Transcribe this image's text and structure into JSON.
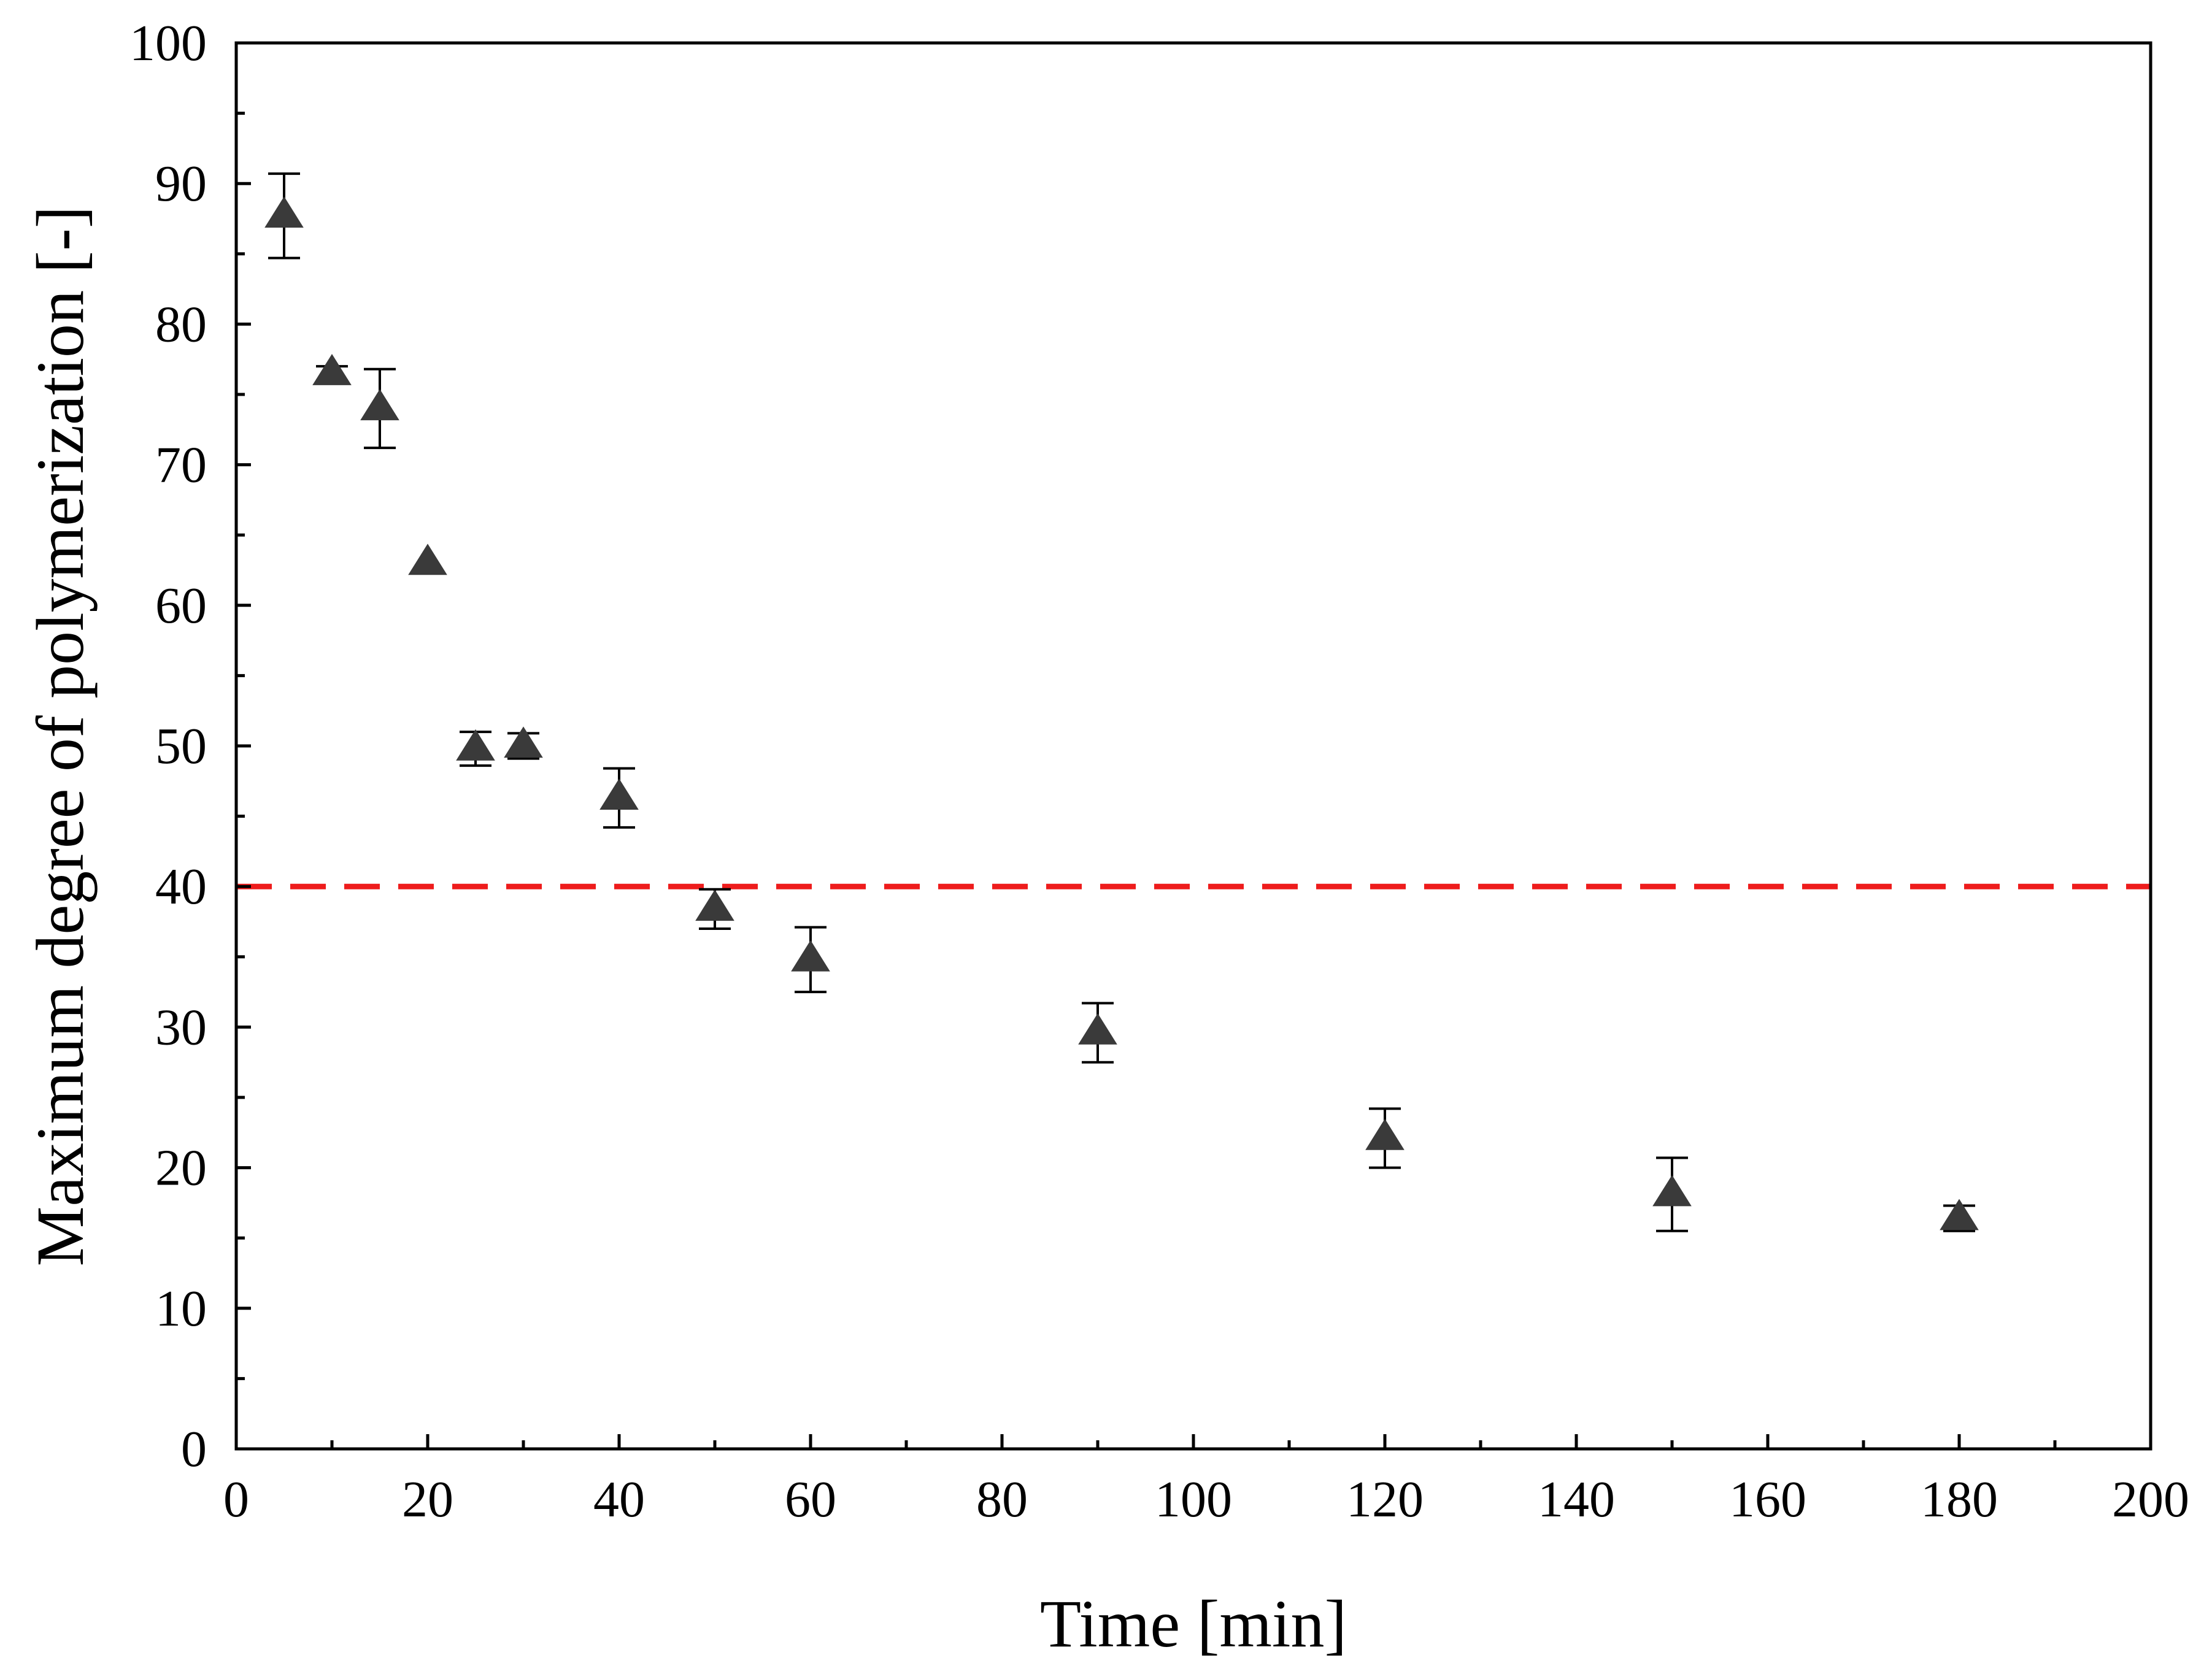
{
  "chart_data": {
    "type": "scatter",
    "title": "",
    "xlabel": "Time [min]",
    "ylabel": "Maximum degree of polymerization [-]",
    "xlim": [
      0,
      200
    ],
    "ylim": [
      0,
      100
    ],
    "x_major_ticks": [
      0,
      20,
      40,
      60,
      80,
      100,
      120,
      140,
      160,
      180,
      200
    ],
    "x_minor_ticks": [
      10,
      30,
      50,
      70,
      90,
      110,
      130,
      150,
      170,
      190
    ],
    "y_major_ticks": [
      0,
      10,
      20,
      30,
      40,
      50,
      60,
      70,
      80,
      90,
      100
    ],
    "y_minor_ticks": [
      5,
      15,
      25,
      35,
      45,
      55,
      65,
      75,
      85,
      95
    ],
    "x_tick_labels": [
      "0",
      "20",
      "40",
      "60",
      "80",
      "100",
      "120",
      "140",
      "160",
      "180",
      "200"
    ],
    "y_tick_labels": [
      "0",
      "10",
      "20",
      "30",
      "40",
      "50",
      "60",
      "70",
      "80",
      "90",
      "100"
    ],
    "grid": false,
    "series": [
      {
        "name": "Maximum degree of polymerization",
        "marker": "triangle",
        "color": "#3a3a3a",
        "points": [
          {
            "x": 5,
            "y": 87.7,
            "err": 3.0
          },
          {
            "x": 10,
            "y": 76.5,
            "err": 0.5
          },
          {
            "x": 15,
            "y": 74.0,
            "err": 2.8
          },
          {
            "x": 20,
            "y": 63.0,
            "err": 0
          },
          {
            "x": 25,
            "y": 49.8,
            "err": 1.2
          },
          {
            "x": 30,
            "y": 50.0,
            "err": 0.9
          },
          {
            "x": 40,
            "y": 46.3,
            "err": 2.1
          },
          {
            "x": 50,
            "y": 38.4,
            "err": 1.4
          },
          {
            "x": 60,
            "y": 34.8,
            "err": 2.3
          },
          {
            "x": 90,
            "y": 29.6,
            "err": 2.1
          },
          {
            "x": 120,
            "y": 22.1,
            "err": 2.1
          },
          {
            "x": 150,
            "y": 18.1,
            "err": 2.6
          },
          {
            "x": 180,
            "y": 16.4,
            "err": 0.9
          }
        ]
      }
    ],
    "reference_line": {
      "y": 40,
      "style": "dashed",
      "color": "#ee1c1c"
    }
  }
}
